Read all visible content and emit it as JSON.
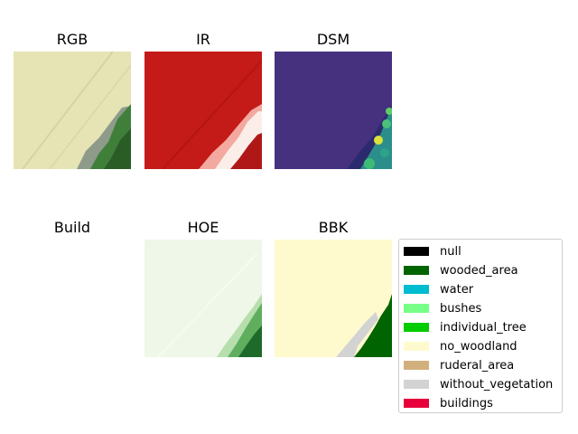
{
  "panels": [
    {
      "title": "RGB"
    },
    {
      "title": "IR"
    },
    {
      "title": "DSM"
    },
    {
      "title": "Build"
    },
    {
      "title": "HOE"
    },
    {
      "title": "BBK"
    }
  ],
  "legend": [
    {
      "label": "null",
      "color": "#000000"
    },
    {
      "label": "wooded_area",
      "color": "#006400"
    },
    {
      "label": "water",
      "color": "#00bcd0"
    },
    {
      "label": "bushes",
      "color": "#77ff88"
    },
    {
      "label": "individual_tree",
      "color": "#00cc00"
    },
    {
      "label": "no_woodland",
      "color": "#fffacd"
    },
    {
      "label": "ruderal_area",
      "color": "#d2b07e"
    },
    {
      "label": "without_vegetation",
      "color": "#d3d3d3"
    },
    {
      "label": "buildings",
      "color": "#e8003a"
    }
  ]
}
